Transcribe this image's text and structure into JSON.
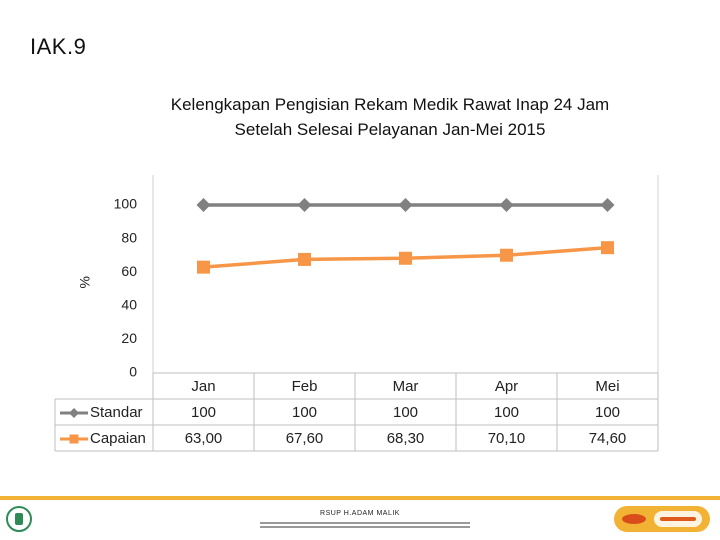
{
  "slide": {
    "title": "IAK.9"
  },
  "footer": {
    "hospital": "RSUP H.ADAM MALIK"
  },
  "chart_data": {
    "type": "line",
    "title": "Kelengkapan Pengisian Rekam Medik Rawat Inap 24 Jam Setelah Selesai Pelayanan Jan-Mei 2015",
    "ylabel": "%",
    "xlabel": "",
    "ylim": [
      0,
      100
    ],
    "yticks": [
      100,
      80,
      60,
      40,
      20,
      0
    ],
    "categories": [
      "Jan",
      "Feb",
      "Mar",
      "Apr",
      "Mei"
    ],
    "series": [
      {
        "name": "Standar",
        "values": [
          100,
          100,
          100,
          100,
          100
        ],
        "labels": [
          "100",
          "100",
          "100",
          "100",
          "100"
        ],
        "color": "#808080",
        "marker": "diamond"
      },
      {
        "name": "Capaian",
        "values": [
          63.0,
          67.6,
          68.3,
          70.1,
          74.6
        ],
        "labels": [
          "63,00",
          "67,60",
          "68,30",
          "70,10",
          "74,60"
        ],
        "color": "#f79646",
        "marker": "square"
      }
    ],
    "legend": "data-table",
    "grid": false
  }
}
